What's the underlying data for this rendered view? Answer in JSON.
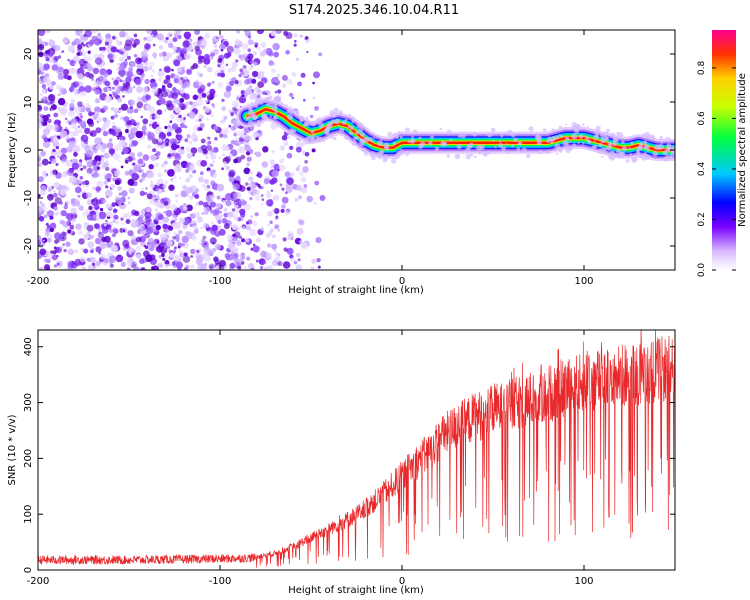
{
  "title": "S174.2025.346.10.04.R11",
  "chart_data": [
    {
      "type": "heatmap",
      "name": "spectrogram",
      "xlabel": "Height of straight line (km)",
      "ylabel": "Frequency (Hz)",
      "xlim": [
        -200,
        150
      ],
      "ylim": [
        -25,
        25
      ],
      "xticks": [
        -200,
        -100,
        0,
        100
      ],
      "yticks": [
        -20,
        -10,
        0,
        10,
        20
      ],
      "noise_region_x": [
        -200,
        -60
      ],
      "signal_trace": {
        "x": [
          -85,
          -80,
          -75,
          -70,
          -65,
          -60,
          -55,
          -50,
          -45,
          -40,
          -35,
          -30,
          -25,
          -20,
          -15,
          -10,
          -5,
          0,
          10,
          20,
          30,
          40,
          50,
          60,
          70,
          80,
          85,
          90,
          95,
          100,
          105,
          110,
          115,
          120,
          125,
          130,
          135,
          140,
          145,
          150
        ],
        "y": [
          7,
          7.5,
          8.5,
          8,
          7,
          5.5,
          4.5,
          3.5,
          4,
          5,
          5.5,
          5,
          3.5,
          2,
          1,
          0.5,
          0.5,
          1.5,
          1.5,
          1.5,
          1.5,
          1.5,
          1.5,
          1.5,
          1.5,
          1.5,
          2,
          2.5,
          2.5,
          2.5,
          2,
          1.5,
          1,
          0.5,
          0.5,
          1,
          0.5,
          0,
          0,
          0
        ]
      },
      "colorbar": {
        "label": "Normalized spectral amplitude",
        "range": [
          0,
          0.95
        ],
        "ticks": [
          0.0,
          0.2,
          0.4,
          0.6,
          0.8
        ],
        "tick_labels": [
          "0.0",
          "0.2",
          "0.4",
          "0.6",
          "0.8"
        ]
      }
    },
    {
      "type": "line",
      "name": "snr",
      "xlabel": "Height of straight line (km)",
      "ylabel": "SNR (10 * v/v)",
      "xlim": [
        -200,
        150
      ],
      "ylim": [
        0,
        430
      ],
      "xticks": [
        -200,
        -100,
        0,
        100
      ],
      "yticks": [
        0,
        100,
        200,
        300,
        400
      ],
      "color": "#e8282a",
      "envelope": {
        "x": [
          -200,
          -150,
          -100,
          -80,
          -70,
          -60,
          -50,
          -40,
          -30,
          -20,
          -10,
          0,
          10,
          20,
          30,
          40,
          50,
          60,
          70,
          80,
          90,
          100,
          110,
          120,
          130,
          140,
          150
        ],
        "y": [
          18,
          18,
          20,
          22,
          28,
          40,
          55,
          70,
          85,
          105,
          130,
          160,
          190,
          220,
          245,
          260,
          270,
          280,
          290,
          300,
          310,
          320,
          325,
          330,
          335,
          340,
          345
        ]
      }
    }
  ]
}
